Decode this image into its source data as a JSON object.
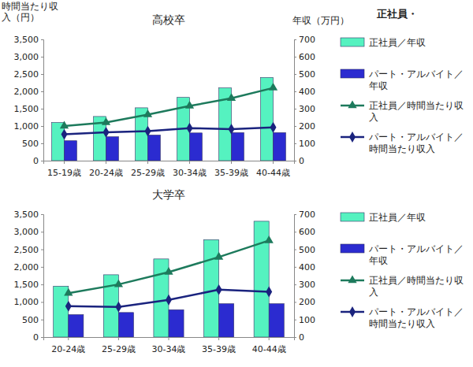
{
  "chart_data": [
    {
      "type": "bar",
      "title": "高校卒",
      "y_label": "時間当たり収入（円）",
      "y2_label": "年収（万円）",
      "annotations": [
        "正社員・"
      ],
      "categories": [
        "15-19歳",
        "20-24歳",
        "25-29歳",
        "30-34歳",
        "35-39歳",
        "40-44歳"
      ],
      "series": [
        {
          "name": "正社員／年収",
          "type": "bar",
          "axis": "y2",
          "color": "#55f2c0",
          "values": [
            220,
            255,
            305,
            365,
            420,
            480
          ]
        },
        {
          "name": "パート・アルバイト／年収",
          "type": "bar",
          "axis": "y2",
          "color": "#2b2bd0",
          "values": [
            115,
            138,
            148,
            160,
            162,
            162
          ]
        },
        {
          "name": "正社員／時間当たり収入",
          "type": "line",
          "marker": "triangle",
          "color": "#1d7a5c",
          "values": [
            1000,
            1100,
            1330,
            1580,
            1800,
            2100
          ]
        },
        {
          "name": "パート・アルバイト／時間当たり収入",
          "type": "line",
          "marker": "diamond",
          "color": "#1a237e",
          "values": [
            760,
            820,
            850,
            940,
            910,
            960
          ]
        }
      ],
      "ylim": [
        0,
        3500
      ],
      "yticks": [
        0,
        500,
        {
          "value": 1000,
          "label": "1,000"
        },
        {
          "value": 1500,
          "label": "1,500"
        },
        {
          "value": 2000,
          "label": "2,000"
        },
        {
          "value": 2500,
          "label": "2,500"
        },
        {
          "value": 3000,
          "label": "3,000"
        },
        {
          "value": 3500,
          "label": "3,500"
        }
      ],
      "y2lim": [
        0,
        700
      ],
      "y2ticks": [
        0,
        100,
        200,
        300,
        400,
        500,
        600,
        700
      ],
      "grid": false,
      "legend": "right"
    },
    {
      "type": "bar",
      "title": "大学卒",
      "categories": [
        "20-24歳",
        "25-29歳",
        "30-34歳",
        "35-39歳",
        "40-44歳"
      ],
      "series": [
        {
          "name": "正社員／年収",
          "type": "bar",
          "axis": "y2",
          "color": "#55f2c0",
          "values": [
            290,
            355,
            445,
            555,
            660
          ]
        },
        {
          "name": "パート・アルバイト／年収",
          "type": "bar",
          "axis": "y2",
          "color": "#2b2bd0",
          "values": [
            128,
            140,
            156,
            190,
            190
          ]
        },
        {
          "name": "正社員／時間当たり収入",
          "type": "line",
          "marker": "triangle",
          "color": "#1d7a5c",
          "values": [
            1250,
            1500,
            1850,
            2280,
            2750
          ]
        },
        {
          "name": "パート・アルバイト／時間当たり収入",
          "type": "line",
          "marker": "diamond",
          "color": "#1a237e",
          "values": [
            880,
            860,
            1060,
            1350,
            1290
          ]
        }
      ],
      "ylim": [
        0,
        3500
      ],
      "yticks": [
        0,
        500,
        {
          "value": 1000,
          "label": "1,000"
        },
        {
          "value": 1500,
          "label": "1,500"
        },
        {
          "value": 2000,
          "label": "2,000"
        },
        {
          "value": 2500,
          "label": "2,500"
        },
        {
          "value": 3000,
          "label": "3,000"
        },
        {
          "value": 3500,
          "label": "3,500"
        }
      ],
      "y2lim": [
        0,
        700
      ],
      "y2ticks": [
        0,
        100,
        200,
        300,
        400,
        500,
        600,
        700
      ],
      "grid": false,
      "legend": "right"
    }
  ]
}
